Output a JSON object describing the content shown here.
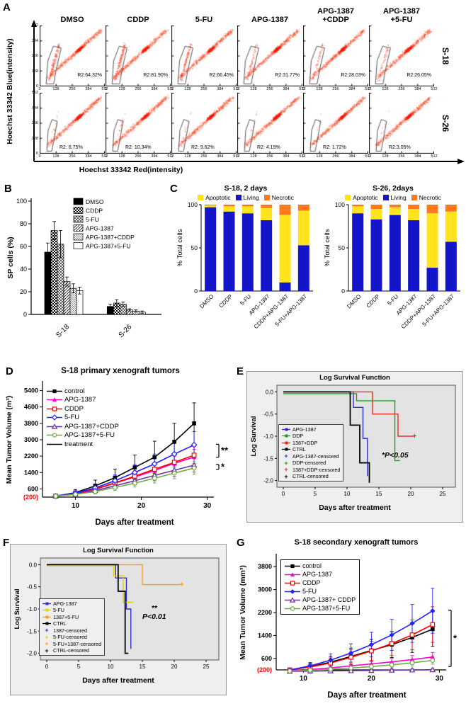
{
  "panels": {
    "A": {
      "label": "A"
    },
    "B": {
      "label": "B"
    },
    "C": {
      "label": "C"
    },
    "D": {
      "label": "D"
    },
    "E": {
      "label": "E"
    },
    "F": {
      "label": "F"
    },
    "G": {
      "label": "G"
    }
  },
  "colors": {
    "scatter_red": "#fa3c14",
    "apoptotic_yellow": "#ffe31e",
    "living_blue": "#1414c8",
    "necrotic_orange": "#ff7a1e",
    "origin_red": "#ff0000"
  },
  "chart_data": [
    {
      "panel": "A",
      "type": "flow-cytometry-scatter",
      "y_axis": "Hoechst 33342 Blue(intensity)",
      "x_axis": "Hoechst 33342 Red(intensity)",
      "col_headers": [
        "DMSO",
        "CDDP",
        "5-FU",
        "APG-1387",
        "APG-1387\n+CDDP",
        "APG-1387\n+5-FU"
      ],
      "row_labels": [
        "S-18",
        "S-26"
      ],
      "axis_ticks": [
        "0",
        "128",
        "256",
        "384",
        "512"
      ],
      "r2_percent": [
        [
          "R2:64.32%",
          "R2:81.90%",
          "R2:66.45%",
          "R2:31.77%",
          "R2:28.03%",
          "R2:26.05%"
        ],
        [
          "R2: 6.75%",
          "R2: 10.34%",
          "R2: 9.62%",
          "R2: 4.19%",
          "R2: 1.72%",
          "R2:3.05%"
        ]
      ],
      "sp_tail": [
        [
          0.95,
          1,
          0.9,
          0.45,
          0.4,
          0.35
        ],
        [
          0.12,
          0.15,
          0.12,
          0.08,
          0.05,
          0.06
        ]
      ]
    },
    {
      "panel": "B",
      "type": "bar",
      "ylabel": "SP cells (%)",
      "ylim": [
        0,
        100
      ],
      "yticks": [
        0,
        20,
        40,
        60,
        80,
        100
      ],
      "categories": [
        "S-18",
        "S-26"
      ],
      "series": [
        {
          "name": "DMSO",
          "pattern": "solid",
          "values": [
            55,
            7
          ],
          "err": [
            8,
            2
          ]
        },
        {
          "name": "CDDP",
          "pattern": "checker",
          "values": [
            74,
            10
          ],
          "err": [
            8,
            3
          ]
        },
        {
          "name": "5-FU",
          "pattern": "crosshatch",
          "values": [
            62,
            9
          ],
          "err": [
            12,
            2
          ]
        },
        {
          "name": "APG-1387",
          "pattern": "diag",
          "values": [
            29,
            4
          ],
          "err": [
            4,
            1
          ]
        },
        {
          "name": "APG-1387+CDDP",
          "pattern": "diag2",
          "values": [
            23,
            3
          ],
          "err": [
            4,
            1
          ]
        },
        {
          "name": "APG-1387+5-FU",
          "pattern": "empty",
          "values": [
            21,
            2
          ],
          "err": [
            3,
            1
          ]
        }
      ]
    },
    {
      "panel": "C-left",
      "type": "stacked-bar",
      "title": "S-18, 2 days",
      "ylabel": "% Total cells",
      "yticks": [
        0,
        50,
        100
      ],
      "categories": [
        "DMSO",
        "CDDP",
        "5-FU",
        "APG-1387",
        "CDDP+APG-1387",
        "5-FU+APG-1387"
      ],
      "legend": [
        {
          "name": "Apoptotic",
          "color": "#ffe31e"
        },
        {
          "name": "Living",
          "color": "#1414c8"
        },
        {
          "name": "Necrotic",
          "color": "#ff7a1e"
        }
      ],
      "series": [
        {
          "name": "Living",
          "color": "#1414c8",
          "values": [
            97,
            92,
            90,
            82,
            10,
            53
          ]
        },
        {
          "name": "Apoptotic",
          "color": "#ffe31e",
          "values": [
            2,
            6,
            8,
            14,
            78,
            40
          ]
        },
        {
          "name": "Necrotic",
          "color": "#ff7a1e",
          "values": [
            1,
            2,
            2,
            4,
            12,
            7
          ]
        }
      ]
    },
    {
      "panel": "C-right",
      "type": "stacked-bar",
      "title": "S-26, 2days",
      "ylabel": "% Total cells",
      "yticks": [
        0,
        50,
        100
      ],
      "categories": [
        "DMSO",
        "CDDP",
        "5-FU",
        "APG-1387",
        "CDDP+APG-1387",
        "5-FU+APG-1387"
      ],
      "legend": [
        {
          "name": "Apoptotic",
          "color": "#ffe31e"
        },
        {
          "name": "Living",
          "color": "#1414c8"
        },
        {
          "name": "Necrotic",
          "color": "#ff7a1e"
        }
      ],
      "series": [
        {
          "name": "Living",
          "color": "#1414c8",
          "values": [
            90,
            83,
            88,
            82,
            27,
            57
          ]
        },
        {
          "name": "Apoptotic",
          "color": "#ffe31e",
          "values": [
            8,
            12,
            9,
            13,
            63,
            35
          ]
        },
        {
          "name": "Necrotic",
          "color": "#ff7a1e",
          "values": [
            2,
            5,
            3,
            5,
            10,
            8
          ]
        }
      ]
    },
    {
      "panel": "D",
      "type": "line",
      "title": "S-18  primary  xenograft tumors",
      "ylabel": "Mean Tumor Volume (m³)",
      "xlabel": "Days after treatment",
      "yticks": [
        5400,
        4600,
        3800,
        3000,
        2200,
        1400,
        600
      ],
      "origin_label": "(200)",
      "ylim": [
        200,
        5800
      ],
      "xticks": [
        10,
        20,
        30
      ],
      "xlim": [
        5,
        31
      ],
      "x": [
        7,
        10,
        13,
        16,
        19,
        22,
        25,
        28
      ],
      "series": [
        {
          "name": "control",
          "color": "#000000",
          "marker": "square-filled",
          "y": [
            250,
            420,
            750,
            1150,
            1650,
            2150,
            2900,
            3800
          ],
          "err": [
            0,
            150,
            280,
            420,
            600,
            780,
            900,
            1000
          ]
        },
        {
          "name": "APG-1387",
          "color": "#ff00c8",
          "marker": "triangle-filled",
          "y": [
            250,
            380,
            580,
            880,
            1180,
            1500,
            1850,
            2150
          ],
          "err": [
            0,
            90,
            140,
            190,
            240,
            300,
            350,
            380
          ]
        },
        {
          "name": "CDDP",
          "color": "#ff0000",
          "marker": "square-open",
          "y": [
            250,
            380,
            600,
            900,
            1220,
            1560,
            1900,
            2250
          ],
          "err": [
            0,
            90,
            150,
            200,
            260,
            320,
            380,
            420
          ]
        },
        {
          "name": "5-FU",
          "color": "#2222ff",
          "marker": "diamond-open",
          "y": [
            250,
            400,
            650,
            1000,
            1400,
            1820,
            2300,
            2750
          ],
          "err": [
            0,
            110,
            190,
            280,
            380,
            480,
            580,
            650
          ]
        },
        {
          "name": "APG-1387+CDDP",
          "color": "#7030a0",
          "marker": "triangle-open",
          "y": [
            250,
            350,
            520,
            750,
            1000,
            1260,
            1510,
            1760
          ],
          "err": [
            0,
            80,
            120,
            160,
            210,
            260,
            300,
            340
          ]
        },
        {
          "name": "APG-1387+5-FU",
          "color": "#70ad47",
          "marker": "circle-open",
          "y": [
            250,
            330,
            470,
            670,
            880,
            1120,
            1370,
            1620
          ],
          "err": [
            0,
            70,
            110,
            150,
            190,
            230,
            270,
            310
          ]
        },
        {
          "name": "treatment",
          "color": "#000000",
          "marker": "line"
        }
      ],
      "sig": [
        {
          "text": "**",
          "y1": 2780,
          "y2": 2150
        },
        {
          "text": "*",
          "y1": 1790,
          "y2": 1560
        }
      ]
    },
    {
      "panel": "E",
      "type": "km",
      "title": "Log Survival Function",
      "ylabel": "Log Survival",
      "xlabel": "Days after treatment",
      "note": [
        "*P<0.05"
      ],
      "yticks": [
        0,
        -0.5,
        -1,
        -1.5,
        -2
      ],
      "ylim": [
        -2.15,
        0.15
      ],
      "xticks": [
        0,
        5,
        10,
        15,
        20,
        25
      ],
      "xlim": [
        -1,
        27
      ],
      "series": [
        {
          "name": "APG-1387",
          "color": "#2e2ec8",
          "steps": [
            [
              0,
              0
            ],
            [
              11,
              0
            ],
            [
              11,
              -0.35
            ],
            [
              12.5,
              -0.35
            ],
            [
              12.5,
              -1.05
            ],
            [
              13.2,
              -1.05
            ],
            [
              13.2,
              -1.9
            ]
          ]
        },
        {
          "name": "DDP",
          "color": "#1f9e1f",
          "steps": [
            [
              0,
              -0.04
            ],
            [
              11.5,
              -0.04
            ],
            [
              11.5,
              -0.2
            ],
            [
              17.5,
              -0.2
            ],
            [
              17.5,
              -1.55
            ],
            [
              18.3,
              -1.55
            ]
          ]
        },
        {
          "name": "1387+DDP",
          "color": "#e03020",
          "steps": [
            [
              0,
              0
            ],
            [
              14,
              0
            ],
            [
              14,
              -0.5
            ],
            [
              18,
              -0.5
            ],
            [
              18,
              -1
            ],
            [
              20.5,
              -1
            ]
          ],
          "censor": [
            [
              20.6,
              -1
            ]
          ]
        },
        {
          "name": "CTRL",
          "color": "#000000",
          "steps": [
            [
              0,
              0
            ],
            [
              10.5,
              0
            ],
            [
              10.5,
              -0.75
            ],
            [
              12,
              -0.75
            ],
            [
              12,
              -1.6
            ],
            [
              13.5,
              -1.6
            ],
            [
              13.5,
              -2.05
            ]
          ]
        }
      ],
      "legend": [
        {
          "name": "APG-1387",
          "color": "#2e2ec8",
          "censored": false
        },
        {
          "name": "DDP",
          "color": "#1f9e1f",
          "censored": false
        },
        {
          "name": "1387+DDP",
          "color": "#e03020",
          "censored": false
        },
        {
          "name": "CTRL",
          "color": "#000000",
          "censored": false
        },
        {
          "name": "APG-1387-censored",
          "color": "#2e2ec8",
          "censored": true
        },
        {
          "name": "DDP-censored",
          "color": "#1f9e1f",
          "censored": true
        },
        {
          "name": "1387+DDP-censored",
          "color": "#e03020",
          "censored": true
        },
        {
          "name": "CTRL-censored",
          "color": "#000000",
          "censored": true
        }
      ]
    },
    {
      "panel": "F",
      "type": "km",
      "title": "Log Survival Function",
      "ylabel": "Log Survival",
      "xlabel": "Days after treatment",
      "note": [
        "**",
        "P<0.01"
      ],
      "yticks": [
        0,
        -0.5,
        -1,
        -1.5,
        -2
      ],
      "ylim": [
        -2.15,
        0.15
      ],
      "xticks": [
        0,
        5,
        10,
        15,
        20,
        25
      ],
      "xlim": [
        -1,
        27
      ],
      "series": [
        {
          "name": "APG-1387",
          "color": "#2e2ec8",
          "steps": [
            [
              0,
              0
            ],
            [
              10.8,
              0
            ],
            [
              10.8,
              -0.3
            ],
            [
              12.5,
              -0.3
            ],
            [
              12.5,
              -1
            ],
            [
              13.2,
              -1
            ],
            [
              13.2,
              -1.9
            ]
          ]
        },
        {
          "name": "5-FU",
          "color": "#ded400",
          "steps": [
            [
              0,
              -0.03
            ],
            [
              10.5,
              -0.03
            ],
            [
              10.5,
              -0.25
            ],
            [
              12,
              -0.25
            ],
            [
              12,
              -0.85
            ],
            [
              13.6,
              -0.85
            ]
          ]
        },
        {
          "name": "1387+5-FU",
          "color": "#ff9c14",
          "steps": [
            [
              0,
              0
            ],
            [
              15,
              0
            ],
            [
              15,
              -0.45
            ],
            [
              21,
              -0.45
            ]
          ],
          "censor": [
            [
              21.2,
              -0.45
            ]
          ]
        },
        {
          "name": "CTRL",
          "color": "#000000",
          "steps": [
            [
              0,
              0
            ],
            [
              11.2,
              0
            ],
            [
              11.2,
              -0.6
            ],
            [
              12.3,
              -0.6
            ],
            [
              12.3,
              -2
            ],
            [
              12.8,
              -2
            ]
          ]
        }
      ],
      "legend": [
        {
          "name": "APG-1387",
          "color": "#2e2ec8",
          "censored": false
        },
        {
          "name": "5-FU",
          "color": "#ded400",
          "censored": false
        },
        {
          "name": "1387+5-FU",
          "color": "#ff9c14",
          "censored": false
        },
        {
          "name": "CTRL",
          "color": "#000000",
          "censored": false
        },
        {
          "name": "1387-censored",
          "color": "#2e2ec8",
          "censored": true
        },
        {
          "name": "5-FU-censored",
          "color": "#ded400",
          "censored": true
        },
        {
          "name": "5-FU+1387-censored",
          "color": "#ff9c14",
          "censored": true
        },
        {
          "name": "CTRL-censored",
          "color": "#000000",
          "censored": true
        }
      ]
    },
    {
      "panel": "G",
      "type": "line",
      "title": "S-18 secondary xenograft tumors",
      "ylabel": "Mean Tumor Volume (mm³)",
      "xlabel": "Days after treatment",
      "yticks": [
        3800,
        3000,
        2200,
        1400,
        600
      ],
      "origin_label": "(200)",
      "ylim": [
        200,
        4200
      ],
      "xticks": [
        10,
        20,
        30
      ],
      "xlim": [
        6,
        31
      ],
      "x": [
        8,
        11,
        14,
        17,
        20,
        23,
        26,
        29
      ],
      "series": [
        {
          "name": "control",
          "color": "#000000",
          "marker": "square-filled",
          "y": [
            200,
            310,
            470,
            670,
            880,
            1080,
            1330,
            1620
          ],
          "err": [
            0,
            120,
            200,
            290,
            380,
            450,
            520,
            600
          ]
        },
        {
          "name": "APG-1387",
          "color": "#ff00c8",
          "marker": "triangle-filled",
          "y": [
            180,
            215,
            270,
            340,
            410,
            480,
            560,
            650
          ],
          "err": [
            0,
            40,
            60,
            80,
            100,
            120,
            140,
            160
          ]
        },
        {
          "name": "CDDP",
          "color": "#ff0000",
          "marker": "square-open",
          "y": [
            200,
            300,
            440,
            640,
            860,
            1120,
            1420,
            1780
          ],
          "err": [
            0,
            100,
            180,
            260,
            340,
            420,
            520,
            620
          ]
        },
        {
          "name": "5-FU",
          "color": "#2222ff",
          "marker": "diamond-filled",
          "y": [
            200,
            340,
            540,
            790,
            1080,
            1420,
            1820,
            2260
          ],
          "err": [
            0,
            120,
            220,
            320,
            430,
            540,
            660,
            780
          ]
        },
        {
          "name": "APG-1387+ CDDP",
          "color": "#7030a0",
          "marker": "triangle-open",
          "y": [
            150,
            158,
            165,
            172,
            180,
            188,
            196,
            205
          ],
          "err": [
            0,
            20,
            25,
            30,
            35,
            40,
            45,
            50
          ]
        },
        {
          "name": "APG-1387+5-FU",
          "color": "#70ad47",
          "marker": "circle-open",
          "y": [
            160,
            185,
            220,
            265,
            315,
            375,
            445,
            530
          ],
          "err": [
            0,
            40,
            55,
            70,
            85,
            100,
            115,
            130
          ]
        }
      ],
      "sig": [
        {
          "text": "*",
          "y1": 2280,
          "y2": 320
        }
      ]
    }
  ]
}
